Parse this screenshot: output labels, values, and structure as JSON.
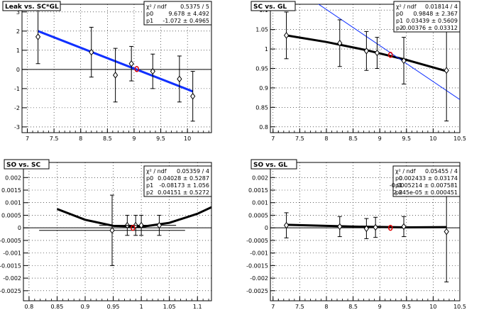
{
  "chart_data": [
    {
      "type": "scatter",
      "title": "Leak vs. SC*GL",
      "xlim": [
        6.9,
        10.45
      ],
      "ylim": [
        -3.3,
        3.4
      ],
      "xticks": [
        {
          "v": 7,
          "t": "7"
        },
        {
          "v": 7.5,
          "t": "7.5"
        },
        {
          "v": 8,
          "t": "8"
        },
        {
          "v": 8.5,
          "t": "8.5"
        },
        {
          "v": 9,
          "t": "9"
        },
        {
          "v": 9.5,
          "t": "9.5"
        },
        {
          "v": 10,
          "t": "10"
        }
      ],
      "yticks": [
        {
          "v": -3,
          "t": "-3"
        },
        {
          "v": -2,
          "t": "-2"
        },
        {
          "v": -1,
          "t": "-1"
        },
        {
          "v": 0,
          "t": "0"
        },
        {
          "v": 1,
          "t": "1"
        },
        {
          "v": 2,
          "t": "2"
        },
        {
          "v": 3,
          "t": "3"
        }
      ],
      "zero_line": true,
      "points": [
        {
          "x": 7.2,
          "y": 1.7,
          "ey": 1.4
        },
        {
          "x": 8.2,
          "y": 0.9,
          "ey": 1.3
        },
        {
          "x": 8.65,
          "y": -0.3,
          "ey": 1.4
        },
        {
          "x": 8.95,
          "y": 0.3,
          "ey": 0.9
        },
        {
          "x": 9.35,
          "y": -0.1,
          "ey": 0.9
        },
        {
          "x": 9.85,
          "y": -0.5,
          "ey": 1.2
        },
        {
          "x": 10.1,
          "y": -1.4,
          "ey": 1.3
        }
      ],
      "fits": [
        {
          "x": [
            7.2,
            10.1
          ],
          "y": [
            2.0,
            -1.15
          ],
          "color": "#1030ff",
          "width": 3
        }
      ],
      "marker": {
        "x": 9.05,
        "y": 0.02
      },
      "stats": {
        "header": [
          "χ² / ndf",
          "0.5375 / 5"
        ],
        "rows": [
          [
            "p0",
            "9.678 ± 4.492"
          ],
          [
            "p1",
            "-1.072 ± 0.4965"
          ]
        ]
      }
    },
    {
      "type": "scatter",
      "title": "SC vs. GL",
      "xlim": [
        6.95,
        10.5
      ],
      "ylim": [
        0.785,
        1.115
      ],
      "xticks": [
        {
          "v": 7,
          "t": "7"
        },
        {
          "v": 7.5,
          "t": "7.5"
        },
        {
          "v": 8,
          "t": "8"
        },
        {
          "v": 8.5,
          "t": "8.5"
        },
        {
          "v": 9,
          "t": "9"
        },
        {
          "v": 9.5,
          "t": "9.5"
        },
        {
          "v": 10,
          "t": "10"
        },
        {
          "v": 10.5,
          "t": "10.5"
        }
      ],
      "yticks": [
        {
          "v": 0.8,
          "t": "0.8"
        },
        {
          "v": 0.85,
          "t": "0.85"
        },
        {
          "v": 0.9,
          "t": "0.9"
        },
        {
          "v": 0.95,
          "t": "0.95"
        },
        {
          "v": 1,
          "t": "1"
        },
        {
          "v": 1.05,
          "t": "1.05"
        },
        {
          "v": 1.1,
          "t": "1.1"
        }
      ],
      "zero_line": false,
      "points": [
        {
          "x": 7.25,
          "y": 1.035,
          "ey": 0.06
        },
        {
          "x": 8.25,
          "y": 1.015,
          "ey": 0.06
        },
        {
          "x": 8.75,
          "y": 0.995,
          "ey": 0.05
        },
        {
          "x": 8.95,
          "y": 0.99,
          "ey": 0.04
        },
        {
          "x": 9.45,
          "y": 0.97,
          "ey": 0.06
        },
        {
          "x": 10.25,
          "y": 0.945,
          "ey": 0.13
        }
      ],
      "fits": [
        {
          "x": [
            7.25,
            8.0,
            8.75,
            9.5,
            10.25
          ],
          "y": [
            1.035,
            1.018,
            0.997,
            0.972,
            0.943
          ],
          "color": "#000",
          "width": 3
        },
        {
          "x": [
            7.8,
            10.5
          ],
          "y": [
            1.12,
            0.87
          ],
          "color": "#1030ff",
          "width": 1
        }
      ],
      "marker": {
        "x": 9.2,
        "y": 0.985
      },
      "stats": {
        "header": [
          "χ² / ndf",
          "0.01814 / 4"
        ],
        "rows": [
          [
            "p0",
            "0.9848 ± 2.367"
          ],
          [
            "p1",
            "0.03439 ± 0.5609"
          ],
          [
            "p2",
            "-0.00376 ± 0.03312"
          ]
        ]
      }
    },
    {
      "type": "scatter",
      "title": "SO vs. SC",
      "xlim": [
        0.79,
        1.125
      ],
      "ylim": [
        -0.0029,
        0.0026
      ],
      "xticks": [
        {
          "v": 0.8,
          "t": "0.8"
        },
        {
          "v": 0.85,
          "t": "0.85"
        },
        {
          "v": 0.9,
          "t": "0.9"
        },
        {
          "v": 0.95,
          "t": "0.95"
        },
        {
          "v": 1,
          "t": "1"
        },
        {
          "v": 1.05,
          "t": "1.05"
        },
        {
          "v": 1.1,
          "t": "1.1"
        }
      ],
      "yticks": [
        {
          "v": -0.0025,
          "t": "-0.0025"
        },
        {
          "v": -0.002,
          "t": "-0.002"
        },
        {
          "v": -0.0015,
          "t": "-0.0015"
        },
        {
          "v": -0.001,
          "t": "-0.001"
        },
        {
          "v": -0.0005,
          "t": "-0.0005"
        },
        {
          "v": 0,
          "t": "0"
        },
        {
          "v": 0.0005,
          "t": "0.0005"
        },
        {
          "v": 0.001,
          "t": "0.001"
        },
        {
          "v": 0.0015,
          "t": "0.0015"
        },
        {
          "v": 0.002,
          "t": "0.002"
        }
      ],
      "zero_line": true,
      "points": [
        {
          "x": 0.948,
          "y": -0.0001,
          "ey": 0.0014,
          "ex": 0.13
        },
        {
          "x": 0.975,
          "y": 0.0001,
          "ey": 0.0004,
          "ex": 0.05
        },
        {
          "x": 0.99,
          "y": 0.0001,
          "ey": 0.0004,
          "ex": 0.02
        },
        {
          "x": 1.0,
          "y": 0.0001,
          "ey": 0.0004,
          "ex": 0.03
        },
        {
          "x": 1.032,
          "y": 0.0001,
          "ey": 0.0004,
          "ex": 0.03
        }
      ],
      "fits": [
        {
          "x": [
            0.85,
            0.9,
            0.95,
            1.0,
            1.05,
            1.1,
            1.125
          ],
          "y": [
            0.00075,
            0.00032,
            8e-05,
            4e-05,
            0.0002,
            0.00056,
            0.00082
          ],
          "color": "#000",
          "width": 3
        }
      ],
      "marker": {
        "x": 0.985,
        "y": 0.0
      },
      "stats": {
        "header": [
          "χ² / ndf",
          "0.05359 / 4"
        ],
        "rows": [
          [
            "p0",
            "0.04028 ± 0.5287"
          ],
          [
            "p1",
            "-0.08173 ± 1.056"
          ],
          [
            "p2",
            "0.04151 ± 0.5272"
          ]
        ]
      }
    },
    {
      "type": "scatter",
      "title": "SO vs. GL",
      "xlim": [
        6.95,
        10.5
      ],
      "ylim": [
        -0.0029,
        0.0026
      ],
      "xticks": [
        {
          "v": 7,
          "t": "7"
        },
        {
          "v": 7.5,
          "t": "7.5"
        },
        {
          "v": 8,
          "t": "8"
        },
        {
          "v": 8.5,
          "t": "8.5"
        },
        {
          "v": 9,
          "t": "9"
        },
        {
          "v": 9.5,
          "t": "9.5"
        },
        {
          "v": 10,
          "t": "10"
        },
        {
          "v": 10.5,
          "t": "10.5"
        }
      ],
      "yticks": [
        {
          "v": -0.0025,
          "t": "-0.0025"
        },
        {
          "v": -0.002,
          "t": "-0.002"
        },
        {
          "v": -0.0015,
          "t": "-0.0015"
        },
        {
          "v": -0.001,
          "t": "-0.001"
        },
        {
          "v": -0.0005,
          "t": "-0.0005"
        },
        {
          "v": 0,
          "t": "0"
        },
        {
          "v": 0.0005,
          "t": "0.0005"
        },
        {
          "v": 0.001,
          "t": "0.001"
        },
        {
          "v": 0.0015,
          "t": "0.0015"
        },
        {
          "v": 0.002,
          "t": "0.002"
        }
      ],
      "zero_line": true,
      "points": [
        {
          "x": 7.25,
          "y": 0.0001,
          "ey": 0.0005
        },
        {
          "x": 8.25,
          "y": 5e-05,
          "ey": 0.0004
        },
        {
          "x": 8.75,
          "y": -3e-05,
          "ey": 0.0004
        },
        {
          "x": 8.92,
          "y": 2e-05,
          "ey": 0.0004
        },
        {
          "x": 9.45,
          "y": 5e-05,
          "ey": 0.0004
        },
        {
          "x": 10.25,
          "y": -0.00015,
          "ey": 0.002
        }
      ],
      "fits": [
        {
          "x": [
            7.25,
            8.5,
            9.5,
            10.25
          ],
          "y": [
            0.00012,
            5e-05,
            2e-05,
            3e-05
          ],
          "color": "#000",
          "width": 3
        }
      ],
      "marker": {
        "x": 9.2,
        "y": 0.0
      },
      "stats": {
        "header": [
          "χ² / ndf",
          "0.05455 / 4"
        ],
        "rows": [
          [
            "p0",
            "0.002433 ± 0.03174"
          ],
          [
            "p1",
            "-0.0005214 ± 0.007581"
          ],
          [
            "p2",
            "2.845e-05 ± 0.000451"
          ]
        ]
      }
    }
  ]
}
